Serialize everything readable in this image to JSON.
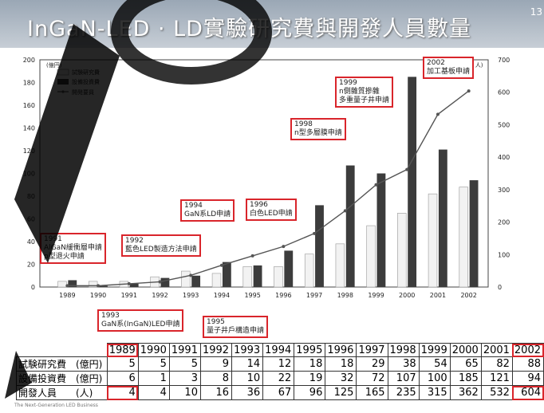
{
  "page": {
    "title": "InGaN-LED · LD實驗研究費與開發人員數量",
    "page_number": "13",
    "footnote": "The Next-Generation LED Business"
  },
  "annotations": [
    {
      "year": "1991",
      "lines": [
        "1991",
        "AlGaN緩衝層申請",
        "p型退火申請"
      ]
    },
    {
      "year": "1992",
      "lines": [
        "1992",
        "藍色LED製造方法申請"
      ]
    },
    {
      "year": "1993",
      "lines": [
        "1993",
        "GaN系(InGaN)LED申請"
      ]
    },
    {
      "year": "1994",
      "lines": [
        "1994",
        "GaN系LD申請"
      ]
    },
    {
      "year": "1995",
      "lines": [
        "1995",
        "量子井戶構造申請"
      ]
    },
    {
      "year": "1996",
      "lines": [
        "1996",
        "白色LED申請"
      ]
    },
    {
      "year": "1998",
      "lines": [
        "1998",
        "n型多層膜申請"
      ]
    },
    {
      "year": "1999",
      "lines": [
        "1999",
        "n側雜質摻雜",
        "多重量子井申請"
      ]
    },
    {
      "year": "2002",
      "lines": [
        "2002",
        "加工基板申請"
      ]
    }
  ],
  "table": {
    "headers": [
      "1989",
      "1990",
      "1991",
      "1992",
      "1993",
      "1994",
      "1995",
      "1996",
      "1997",
      "1998",
      "1999",
      "2000",
      "2001",
      "2002"
    ],
    "rows": [
      {
        "label": "試験研究費　(億円)",
        "values": [
          "5",
          "5",
          "5",
          "9",
          "14",
          "12",
          "18",
          "18",
          "29",
          "38",
          "54",
          "65",
          "82",
          "88"
        ]
      },
      {
        "label": "設備投資費　(億円)",
        "values": [
          "6",
          "1",
          "3",
          "8",
          "10",
          "22",
          "19",
          "32",
          "72",
          "107",
          "100",
          "185",
          "121",
          "94"
        ]
      },
      {
        "label": "開發人員　　(人)",
        "values": [
          "4",
          "4",
          "10",
          "16",
          "36",
          "67",
          "96",
          "125",
          "165",
          "235",
          "315",
          "362",
          "532",
          "604"
        ]
      }
    ]
  },
  "chart_data": {
    "type": "bar",
    "categories": [
      "1989",
      "1990",
      "1991",
      "1992",
      "1993",
      "1994",
      "1995",
      "1996",
      "1997",
      "1998",
      "1999",
      "2000",
      "2001",
      "2002"
    ],
    "series": [
      {
        "name": "試験研究費",
        "kind": "bar",
        "axis": "left",
        "color": "#f2f2f2",
        "values": [
          5,
          5,
          5,
          9,
          14,
          12,
          18,
          18,
          29,
          38,
          54,
          65,
          82,
          88
        ]
      },
      {
        "name": "設備投資費",
        "kind": "bar",
        "axis": "left",
        "color": "#3c3c3c",
        "values": [
          6,
          1,
          3,
          8,
          10,
          22,
          19,
          32,
          72,
          107,
          100,
          185,
          121,
          94
        ]
      },
      {
        "name": "開発要員",
        "kind": "line",
        "axis": "right",
        "color": "#555555",
        "values": [
          4,
          4,
          10,
          16,
          36,
          67,
          96,
          125,
          165,
          235,
          315,
          362,
          532,
          604
        ]
      }
    ],
    "ylabel": "(億円)",
    "y2label": "(單位：人)",
    "ylim": [
      0,
      200
    ],
    "y2lim": [
      0,
      700
    ],
    "yticks": [
      0,
      20,
      40,
      60,
      80,
      100,
      120,
      140,
      160,
      180,
      200
    ],
    "y2ticks": [
      0,
      100,
      200,
      300,
      400,
      500,
      600,
      700
    ],
    "legend_position": "top-left",
    "grid": false
  }
}
